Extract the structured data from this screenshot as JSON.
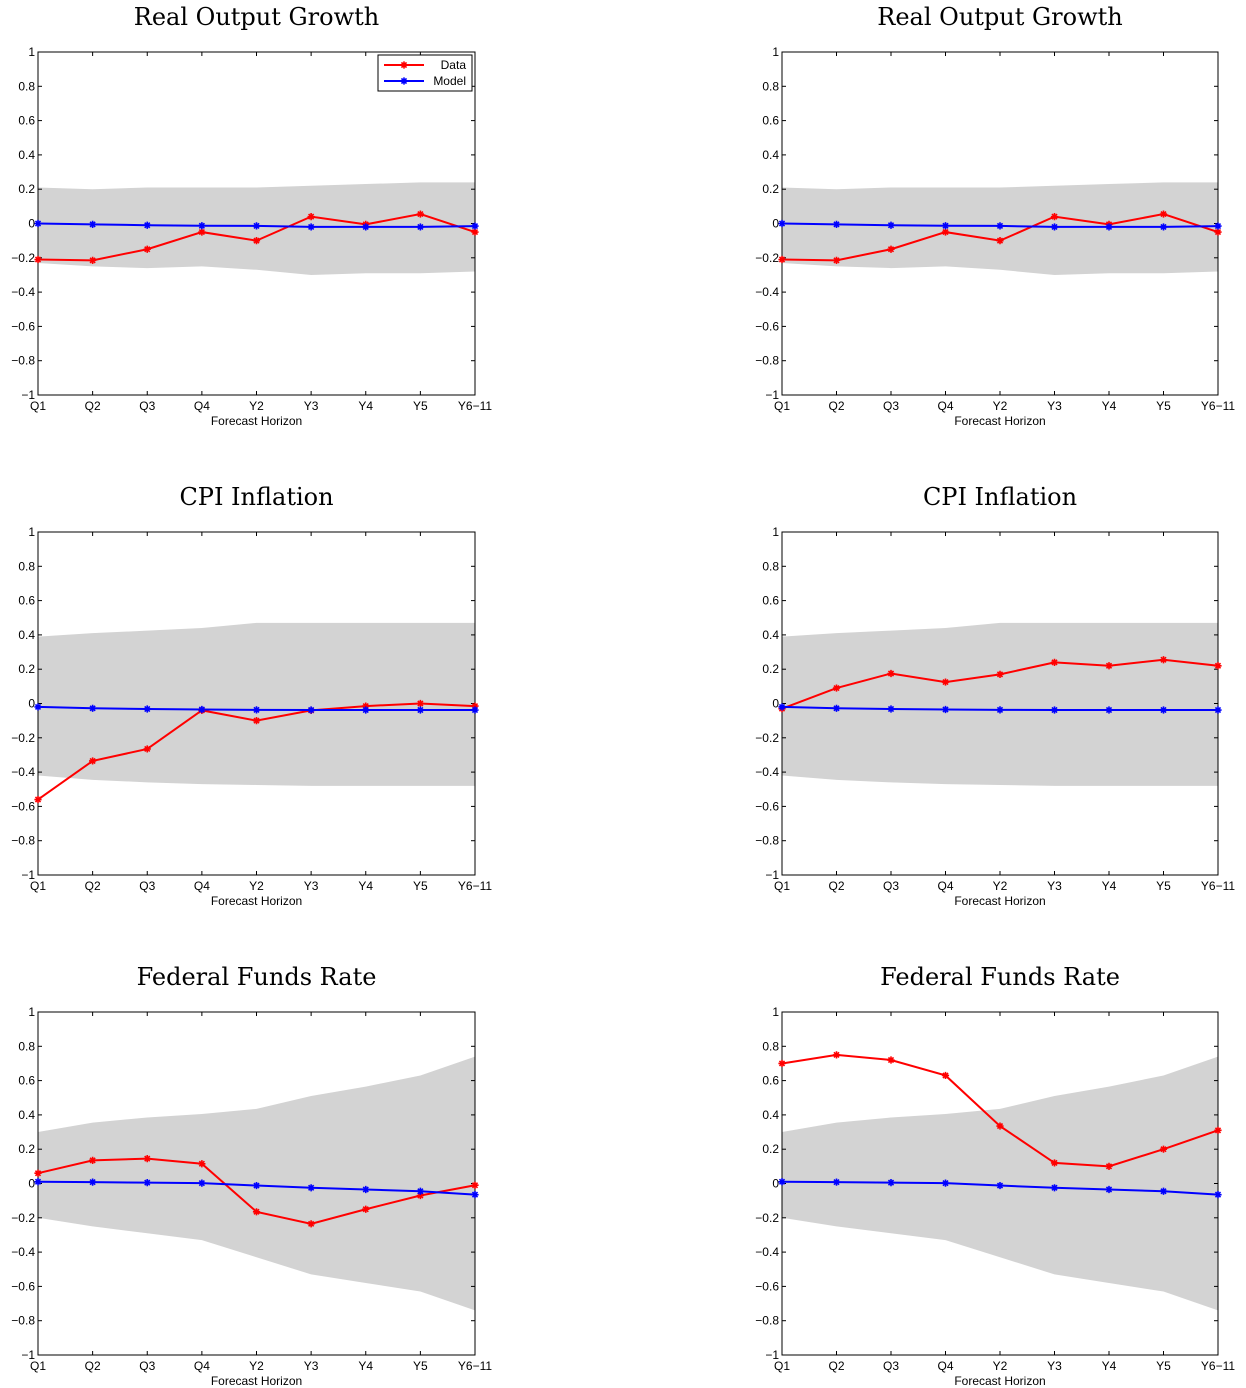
{
  "colors": {
    "data": "#ff0000",
    "model": "#0000ff",
    "band": "#d3d3d3",
    "axis": "#000000"
  },
  "chart_data": [
    {
      "type": "line",
      "title": "Real Output Growth",
      "xlabel": "Forecast Horizon",
      "ylabel": "",
      "categories": [
        "Q1",
        "Q2",
        "Q3",
        "Q4",
        "Y2",
        "Y3",
        "Y4",
        "Y5",
        "Y6−11"
      ],
      "ylim": [
        -1,
        1
      ],
      "yticks": [
        "−1",
        "−0.8",
        "−0.6",
        "−0.4",
        "−0.2",
        "0",
        "0.2",
        "0.4",
        "0.6",
        "0.8",
        "1"
      ],
      "band": {
        "upper": [
          0.21,
          0.2,
          0.21,
          0.21,
          0.21,
          0.22,
          0.23,
          0.24,
          0.24
        ],
        "lower": [
          -0.23,
          -0.25,
          -0.26,
          -0.25,
          -0.27,
          -0.3,
          -0.29,
          -0.29,
          -0.28
        ]
      },
      "series": [
        {
          "name": "Data",
          "color": "#ff0000",
          "values": [
            -0.21,
            -0.215,
            -0.15,
            -0.05,
            -0.1,
            0.04,
            -0.005,
            0.055,
            -0.05
          ]
        },
        {
          "name": "Model",
          "color": "#0000ff",
          "values": [
            0.0,
            -0.005,
            -0.01,
            -0.013,
            -0.014,
            -0.02,
            -0.02,
            -0.02,
            -0.015
          ]
        }
      ],
      "legend": "top-right",
      "grid": false
    },
    {
      "type": "line",
      "title": "Real Output Growth",
      "xlabel": "Forecast Horizon",
      "ylabel": "",
      "categories": [
        "Q1",
        "Q2",
        "Q3",
        "Q4",
        "Y2",
        "Y3",
        "Y4",
        "Y5",
        "Y6−11"
      ],
      "ylim": [
        -1,
        1
      ],
      "yticks": [
        "−1",
        "−0.8",
        "−0.6",
        "−0.4",
        "−0.2",
        "0",
        "0.2",
        "0.4",
        "0.6",
        "0.8",
        "1"
      ],
      "band": {
        "upper": [
          0.21,
          0.2,
          0.21,
          0.21,
          0.21,
          0.22,
          0.23,
          0.24,
          0.24
        ],
        "lower": [
          -0.23,
          -0.25,
          -0.26,
          -0.25,
          -0.27,
          -0.3,
          -0.29,
          -0.29,
          -0.28
        ]
      },
      "series": [
        {
          "color": "#ff0000",
          "values": [
            -0.21,
            -0.215,
            -0.15,
            -0.05,
            -0.1,
            0.04,
            -0.005,
            0.055,
            -0.05
          ]
        },
        {
          "color": "#0000ff",
          "values": [
            0.0,
            -0.005,
            -0.01,
            -0.013,
            -0.014,
            -0.02,
            -0.02,
            -0.02,
            -0.015
          ]
        }
      ],
      "legend": "none",
      "grid": false
    },
    {
      "type": "line",
      "title": "CPI Inflation",
      "xlabel": "Forecast Horizon",
      "ylabel": "",
      "categories": [
        "Q1",
        "Q2",
        "Q3",
        "Q4",
        "Y2",
        "Y3",
        "Y4",
        "Y5",
        "Y6−11"
      ],
      "ylim": [
        -1,
        1
      ],
      "yticks": [
        "−1",
        "−0.8",
        "−0.6",
        "−0.4",
        "−0.2",
        "0",
        "0.2",
        "0.4",
        "0.6",
        "0.8",
        "1"
      ],
      "band": {
        "upper": [
          0.39,
          0.41,
          0.425,
          0.44,
          0.47,
          0.47,
          0.47,
          0.47,
          0.47
        ],
        "lower": [
          -0.42,
          -0.445,
          -0.46,
          -0.47,
          -0.475,
          -0.48,
          -0.48,
          -0.48,
          -0.48
        ]
      },
      "series": [
        {
          "color": "#ff0000",
          "values": [
            -0.56,
            -0.335,
            -0.265,
            -0.04,
            -0.1,
            -0.04,
            -0.015,
            0.0,
            -0.015
          ]
        },
        {
          "color": "#0000ff",
          "values": [
            -0.02,
            -0.028,
            -0.032,
            -0.035,
            -0.037,
            -0.038,
            -0.038,
            -0.038,
            -0.038
          ]
        }
      ],
      "legend": "none",
      "grid": false
    },
    {
      "type": "line",
      "title": "CPI Inflation",
      "xlabel": "Forecast Horizon",
      "ylabel": "",
      "categories": [
        "Q1",
        "Q2",
        "Q3",
        "Q4",
        "Y2",
        "Y3",
        "Y4",
        "Y5",
        "Y6−11"
      ],
      "ylim": [
        -1,
        1
      ],
      "yticks": [
        "−1",
        "−0.8",
        "−0.6",
        "−0.4",
        "−0.2",
        "0",
        "0.2",
        "0.4",
        "0.6",
        "0.8",
        "1"
      ],
      "band": {
        "upper": [
          0.39,
          0.41,
          0.425,
          0.44,
          0.47,
          0.47,
          0.47,
          0.47,
          0.47
        ],
        "lower": [
          -0.42,
          -0.445,
          -0.46,
          -0.47,
          -0.475,
          -0.48,
          -0.48,
          -0.48,
          -0.48
        ]
      },
      "series": [
        {
          "color": "#ff0000",
          "values": [
            -0.03,
            0.09,
            0.175,
            0.125,
            0.17,
            0.24,
            0.22,
            0.255,
            0.22
          ]
        },
        {
          "color": "#0000ff",
          "values": [
            -0.02,
            -0.028,
            -0.032,
            -0.035,
            -0.037,
            -0.038,
            -0.038,
            -0.038,
            -0.038
          ]
        }
      ],
      "legend": "none",
      "grid": false
    },
    {
      "type": "line",
      "title": "Federal Funds Rate",
      "xlabel": "Forecast Horizon",
      "ylabel": "",
      "categories": [
        "Q1",
        "Q2",
        "Q3",
        "Q4",
        "Y2",
        "Y3",
        "Y4",
        "Y5",
        "Y6−11"
      ],
      "ylim": [
        -1,
        1
      ],
      "yticks": [
        "−1",
        "−0.8",
        "−0.6",
        "−0.4",
        "−0.2",
        "0",
        "0.2",
        "0.4",
        "0.6",
        "0.8",
        "1"
      ],
      "band": {
        "upper": [
          0.3,
          0.355,
          0.385,
          0.405,
          0.435,
          0.51,
          0.565,
          0.63,
          0.74
        ],
        "lower": [
          -0.2,
          -0.25,
          -0.29,
          -0.33,
          -0.43,
          -0.53,
          -0.58,
          -0.63,
          -0.74
        ]
      },
      "series": [
        {
          "color": "#ff0000",
          "values": [
            0.06,
            0.135,
            0.145,
            0.115,
            -0.165,
            -0.235,
            -0.15,
            -0.07,
            -0.01
          ]
        },
        {
          "color": "#0000ff",
          "values": [
            0.01,
            0.008,
            0.005,
            0.002,
            -0.012,
            -0.025,
            -0.035,
            -0.045,
            -0.065
          ]
        }
      ],
      "legend": "none",
      "grid": false
    },
    {
      "type": "line",
      "title": "Federal Funds Rate",
      "xlabel": "Forecast Horizon",
      "ylabel": "",
      "categories": [
        "Q1",
        "Q2",
        "Q3",
        "Q4",
        "Y2",
        "Y3",
        "Y4",
        "Y5",
        "Y6−11"
      ],
      "ylim": [
        -1,
        1
      ],
      "yticks": [
        "−1",
        "−0.8",
        "−0.6",
        "−0.4",
        "−0.2",
        "0",
        "0.2",
        "0.4",
        "0.6",
        "0.8",
        "1"
      ],
      "band": {
        "upper": [
          0.3,
          0.355,
          0.385,
          0.405,
          0.435,
          0.51,
          0.565,
          0.63,
          0.74
        ],
        "lower": [
          -0.2,
          -0.25,
          -0.29,
          -0.33,
          -0.43,
          -0.53,
          -0.58,
          -0.63,
          -0.74
        ]
      },
      "series": [
        {
          "color": "#ff0000",
          "values": [
            0.7,
            0.75,
            0.72,
            0.63,
            0.335,
            0.12,
            0.1,
            0.2,
            0.31
          ]
        },
        {
          "color": "#0000ff",
          "values": [
            0.01,
            0.008,
            0.005,
            0.002,
            -0.012,
            -0.025,
            -0.035,
            -0.045,
            -0.065
          ]
        }
      ],
      "legend": "none",
      "grid": false
    }
  ]
}
